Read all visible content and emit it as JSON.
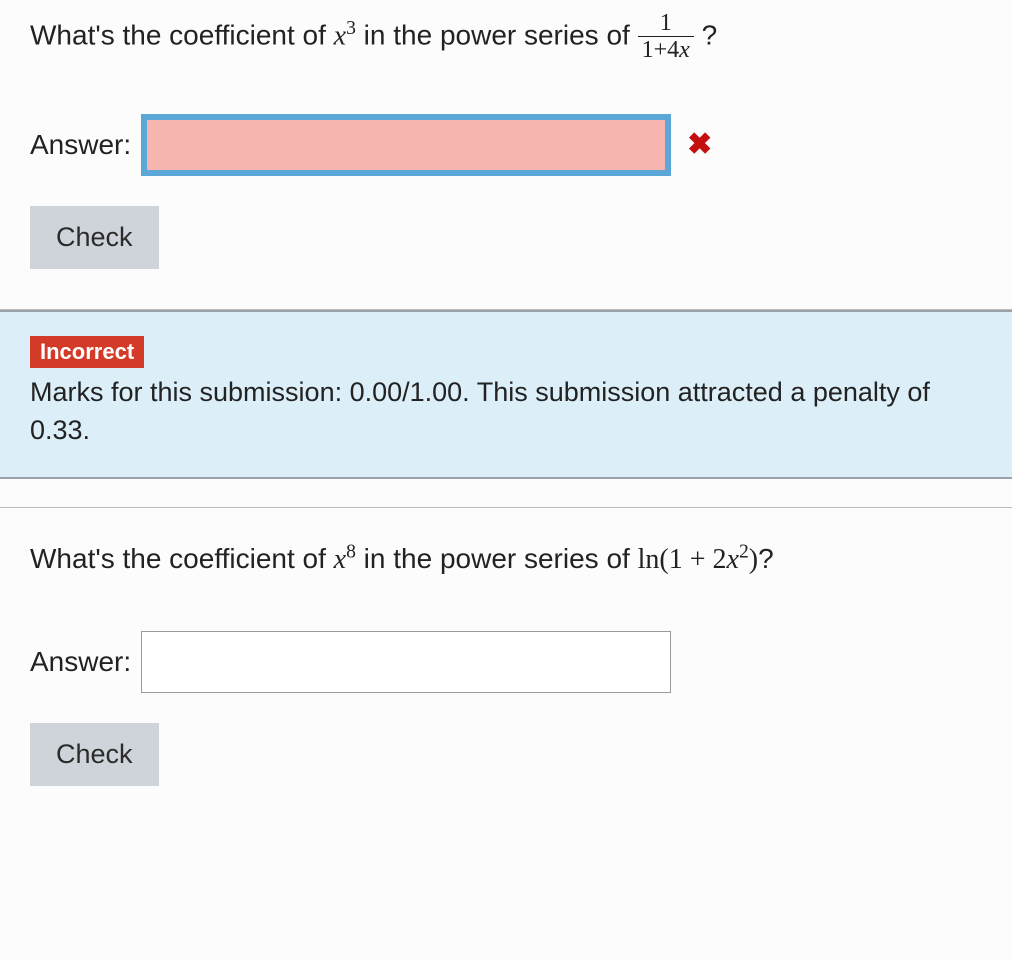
{
  "question1": {
    "prompt_prefix": "What's the coefficient of ",
    "exponent_base": "x",
    "exponent_power": "3",
    "prompt_mid": " in the power series of ",
    "frac_num": "1",
    "frac_den_left": "1+4",
    "frac_den_var": "x",
    "prompt_suffix": "?",
    "answer_label": "Answer:",
    "answer_value": "",
    "check_label": "Check",
    "status_icon": "✖",
    "input_state": "incorrect",
    "colors": {
      "input_bg": "#f7b5b0",
      "input_border": "#5ba7d8",
      "cross": "#c30f0f",
      "btn_bg": "#ced4da"
    }
  },
  "feedback": {
    "badge": "Incorrect",
    "text": "Marks for this submission: 0.00/1.00. This submission attracted a penalty of 0.33.",
    "colors": {
      "panel_bg": "#dceef8",
      "badge_bg": "#d33b28",
      "border": "#9aa3ab"
    }
  },
  "question2": {
    "prompt_prefix": "What's the coefficient of ",
    "exponent_base": "x",
    "exponent_power": "8",
    "prompt_mid": " in the power series of ",
    "func_name": "ln",
    "func_arg_left": "(1 + 2",
    "func_arg_var": "x",
    "func_arg_exp": "2",
    "func_arg_right": ")",
    "prompt_suffix": "?",
    "answer_label": "Answer:",
    "answer_value": "",
    "check_label": "Check"
  },
  "typography": {
    "body_font": "-apple-system, Segoe UI, Helvetica, Arial, sans-serif",
    "math_font": "Times New Roman, serif",
    "question_fontsize": 28,
    "badge_fontsize": 22,
    "feedback_fontsize": 27
  }
}
